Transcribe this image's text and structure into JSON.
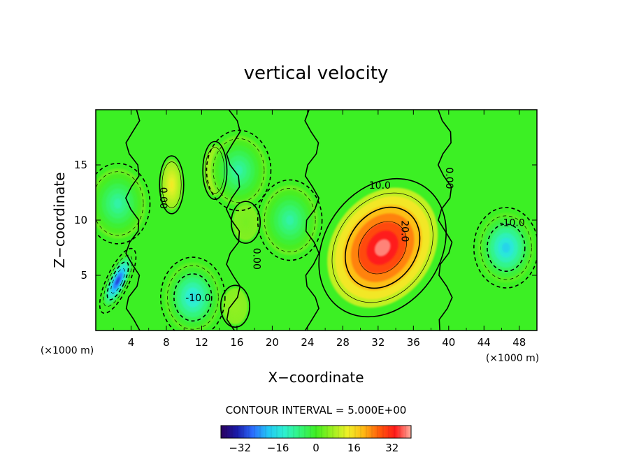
{
  "chart_data": {
    "type": "heatmap",
    "title": "vertical velocity",
    "xlabel": "X−coordinate",
    "ylabel": "Z−coordinate",
    "x_unit": "(×1000 m)",
    "y_unit": "(×1000 m)",
    "xlim": [
      0,
      50
    ],
    "ylim": [
      0,
      20
    ],
    "x_ticks": [
      4,
      8,
      12,
      16,
      20,
      24,
      28,
      32,
      36,
      40,
      44,
      48
    ],
    "x_tick_labels": [
      "4",
      "8",
      "12",
      "16",
      "20",
      "24",
      "28",
      "32",
      "36",
      "40",
      "44",
      "48"
    ],
    "y_ticks": [
      5,
      10,
      15
    ],
    "y_tick_labels": [
      "5",
      "10",
      "15"
    ],
    "contour_interval_text": "CONTOUR INTERVAL = 5.000E+00",
    "contour_interval": 5.0,
    "contour_labels": [
      {
        "text": "10.0",
        "x": 32.2,
        "y": 13.1
      },
      {
        "text": "20.0",
        "x": 35.0,
        "y": 9.0
      },
      {
        "text": "0.00",
        "x": 40.0,
        "y": 13.8
      },
      {
        "text": "0.00",
        "x": 7.6,
        "y": 12.0
      },
      {
        "text": "0.00",
        "x": 18.2,
        "y": 6.5
      },
      {
        "text": "-10.0",
        "x": 11.6,
        "y": 2.9
      },
      {
        "text": "-10.0",
        "x": 47.2,
        "y": 9.7
      }
    ],
    "features": [
      {
        "kind": "updraft",
        "x": 32.5,
        "y": 7.5,
        "peak": 38
      },
      {
        "kind": "updraft",
        "x": 8.6,
        "y": 13.2,
        "peak": 14
      },
      {
        "kind": "updraft",
        "x": 17.0,
        "y": 9.8,
        "peak": 4
      },
      {
        "kind": "updraft",
        "x": 15.8,
        "y": 2.2,
        "peak": 6
      },
      {
        "kind": "updraft",
        "x": 13.5,
        "y": 14.5,
        "peak": 10
      },
      {
        "kind": "downdraft",
        "x": 2.5,
        "y": 4.5,
        "peak": -30
      },
      {
        "kind": "downdraft",
        "x": 11.0,
        "y": 3.0,
        "peak": -16
      },
      {
        "kind": "downdraft",
        "x": 46.5,
        "y": 7.5,
        "peak": -18
      },
      {
        "kind": "downdraft",
        "x": 2.5,
        "y": 11.5,
        "peak": -10
      },
      {
        "kind": "downdraft",
        "x": 22.0,
        "y": 10.0,
        "peak": -10
      },
      {
        "kind": "downdraft",
        "x": 16.2,
        "y": 14.5,
        "peak": -10
      }
    ],
    "colorbar": {
      "min": -40,
      "max": 40,
      "ticks": [
        -32,
        -16,
        0,
        16,
        32
      ],
      "tick_labels": [
        "−32",
        "−16",
        "0",
        "16",
        "32"
      ],
      "colors": [
        "#2b005e",
        "#1a1aa8",
        "#2b6cff",
        "#22c8f5",
        "#2ef0d0",
        "#33f57a",
        "#40ee22",
        "#9af020",
        "#f0f028",
        "#ffb814",
        "#ff5a0a",
        "#ff1a1a",
        "#ffb0a0"
      ]
    }
  }
}
